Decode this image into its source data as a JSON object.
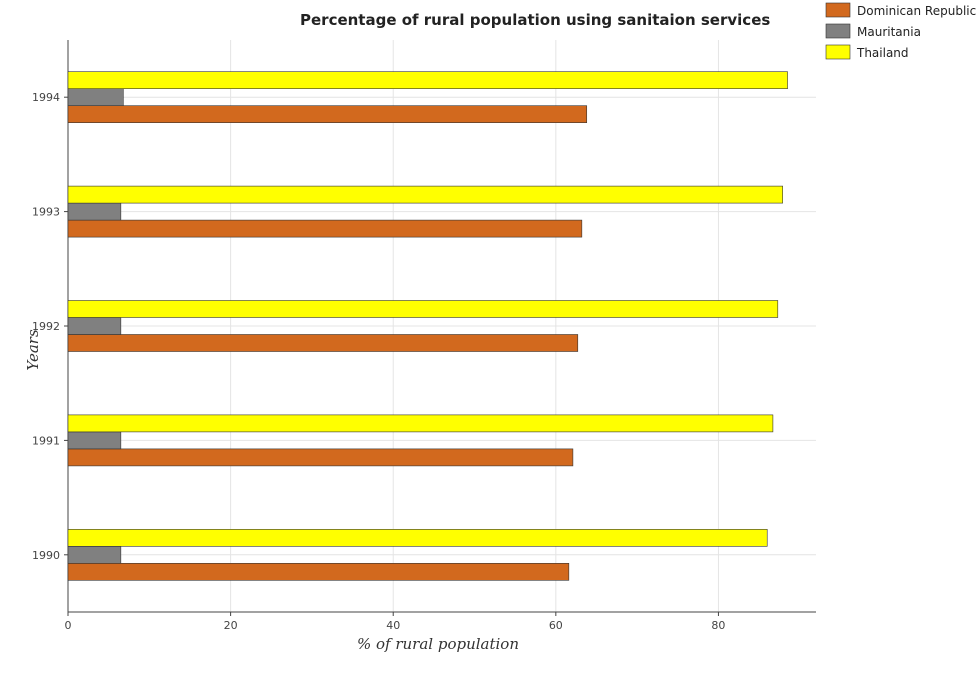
{
  "chart_data": {
    "type": "bar",
    "orientation": "horizontal",
    "title": "Percentage of rural population using sanitaion services",
    "xlabel": "% of rural population",
    "ylabel": "Years",
    "categories": [
      "1990",
      "1991",
      "1992",
      "1993",
      "1994"
    ],
    "xlim": [
      0,
      92
    ],
    "xticks": [
      0,
      20,
      40,
      60,
      80
    ],
    "grid": true,
    "legend_position": "top-right",
    "series": [
      {
        "name": "Dominican Republic",
        "color": "#d2691e",
        "values": [
          61.6,
          62.1,
          62.7,
          63.2,
          63.8
        ]
      },
      {
        "name": "Mauritania",
        "color": "#808080",
        "values": [
          6.5,
          6.5,
          6.5,
          6.5,
          6.8
        ]
      },
      {
        "name": "Thailand",
        "color": "#ffff00",
        "values": [
          86.0,
          86.7,
          87.3,
          87.9,
          88.5
        ]
      }
    ]
  }
}
